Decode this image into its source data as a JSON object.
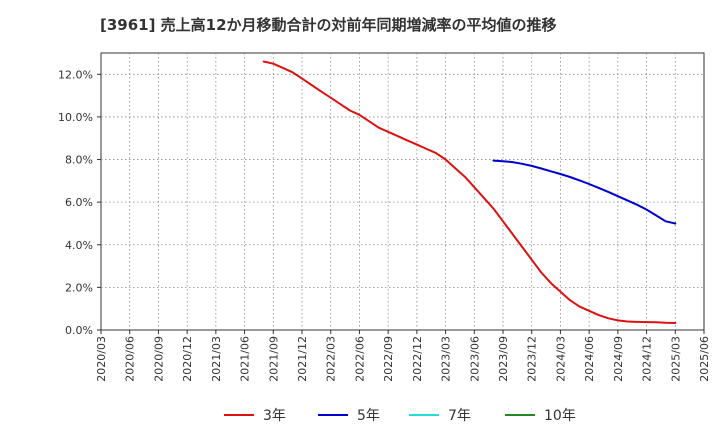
{
  "chart_data": {
    "type": "line",
    "title": "[3961]  売上高12か月移動合計の対前年同期増減率の平均値の推移",
    "xlabel": "",
    "ylabel": "",
    "x_categories": [
      "2020/03",
      "2020/06",
      "2020/09",
      "2020/12",
      "2021/03",
      "2021/06",
      "2021/09",
      "2021/12",
      "2022/03",
      "2022/06",
      "2022/09",
      "2022/12",
      "2023/03",
      "2023/06",
      "2023/09",
      "2023/12",
      "2024/03",
      "2024/06",
      "2024/09",
      "2024/12",
      "2025/03",
      "2025/06"
    ],
    "ylim": [
      0,
      13
    ],
    "y_ticks": [
      0,
      2,
      4,
      6,
      8,
      10,
      12
    ],
    "y_tick_labels": [
      "0.0%",
      "2.0%",
      "4.0%",
      "6.0%",
      "8.0%",
      "10.0%",
      "12.0%"
    ],
    "grid": true,
    "legend_position": "bottom",
    "series": [
      {
        "name": "3年",
        "color": "#dd1111",
        "points": [
          [
            "2021/08",
            12.6
          ],
          [
            "2021/09",
            12.5
          ],
          [
            "2021/10",
            12.3
          ],
          [
            "2021/11",
            12.1
          ],
          [
            "2021/12",
            11.8
          ],
          [
            "2022/01",
            11.5
          ],
          [
            "2022/02",
            11.2
          ],
          [
            "2022/03",
            10.9
          ],
          [
            "2022/04",
            10.6
          ],
          [
            "2022/05",
            10.3
          ],
          [
            "2022/06",
            10.1
          ],
          [
            "2022/07",
            9.8
          ],
          [
            "2022/08",
            9.5
          ],
          [
            "2022/09",
            9.3
          ],
          [
            "2022/10",
            9.1
          ],
          [
            "2022/11",
            8.9
          ],
          [
            "2022/12",
            8.7
          ],
          [
            "2023/01",
            8.5
          ],
          [
            "2023/02",
            8.3
          ],
          [
            "2023/03",
            8.0
          ],
          [
            "2023/04",
            7.6
          ],
          [
            "2023/05",
            7.2
          ],
          [
            "2023/06",
            6.7
          ],
          [
            "2023/07",
            6.2
          ],
          [
            "2023/08",
            5.7
          ],
          [
            "2023/09",
            5.1
          ],
          [
            "2023/10",
            4.5
          ],
          [
            "2023/11",
            3.9
          ],
          [
            "2023/12",
            3.3
          ],
          [
            "2024/01",
            2.7
          ],
          [
            "2024/02",
            2.2
          ],
          [
            "2024/03",
            1.8
          ],
          [
            "2024/04",
            1.4
          ],
          [
            "2024/05",
            1.1
          ],
          [
            "2024/06",
            0.9
          ],
          [
            "2024/07",
            0.7
          ],
          [
            "2024/08",
            0.55
          ],
          [
            "2024/09",
            0.45
          ],
          [
            "2024/10",
            0.4
          ],
          [
            "2024/11",
            0.38
          ],
          [
            "2024/12",
            0.37
          ],
          [
            "2025/01",
            0.36
          ],
          [
            "2025/02",
            0.34
          ],
          [
            "2025/03",
            0.33
          ]
        ]
      },
      {
        "name": "5年",
        "color": "#0000cc",
        "points": [
          [
            "2023/08",
            7.95
          ],
          [
            "2023/09",
            7.92
          ],
          [
            "2023/10",
            7.88
          ],
          [
            "2023/11",
            7.8
          ],
          [
            "2023/12",
            7.7
          ],
          [
            "2024/01",
            7.58
          ],
          [
            "2024/02",
            7.45
          ],
          [
            "2024/03",
            7.32
          ],
          [
            "2024/04",
            7.18
          ],
          [
            "2024/05",
            7.02
          ],
          [
            "2024/06",
            6.85
          ],
          [
            "2024/07",
            6.67
          ],
          [
            "2024/08",
            6.48
          ],
          [
            "2024/09",
            6.28
          ],
          [
            "2024/10",
            6.08
          ],
          [
            "2024/11",
            5.88
          ],
          [
            "2024/12",
            5.65
          ],
          [
            "2025/01",
            5.38
          ],
          [
            "2025/02",
            5.1
          ],
          [
            "2025/03",
            5.0
          ]
        ]
      },
      {
        "name": "7年",
        "color": "#22dddd",
        "points": []
      },
      {
        "name": "10年",
        "color": "#228822",
        "points": []
      }
    ]
  }
}
